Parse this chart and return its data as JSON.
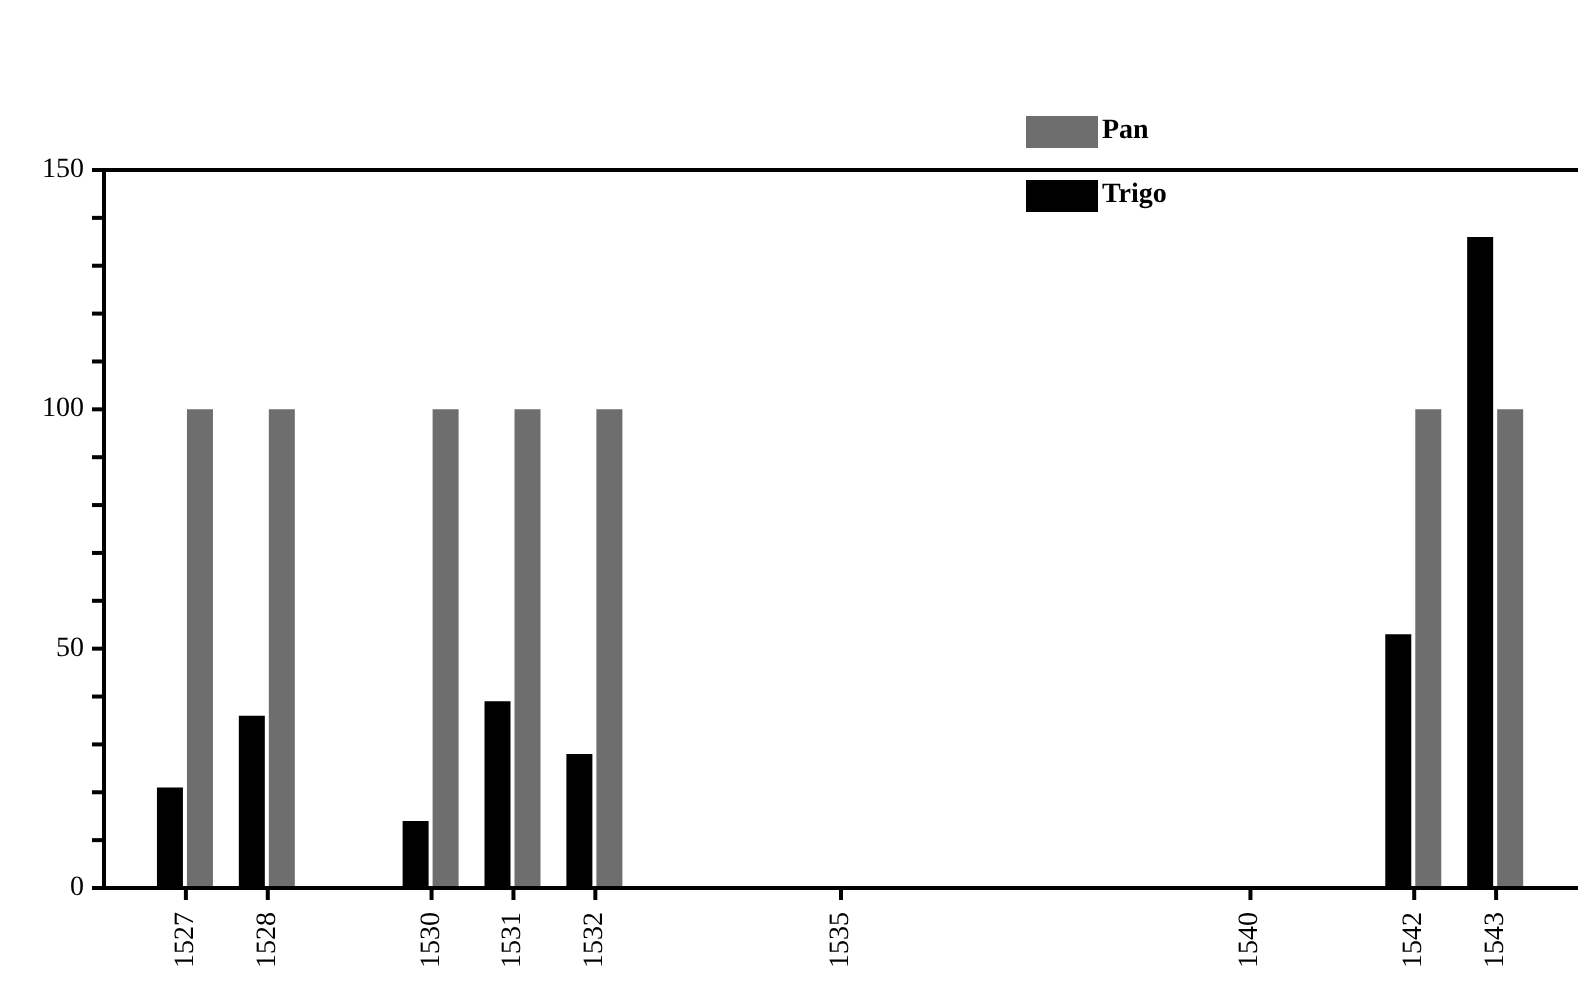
{
  "chart_data": {
    "type": "bar",
    "x": [
      1527,
      1528,
      1530,
      1531,
      1532,
      1542,
      1543
    ],
    "series": [
      {
        "name": "Trigo",
        "color": "#000000",
        "values": [
          21,
          36,
          14,
          39,
          28,
          53,
          136
        ]
      },
      {
        "name": "Pan",
        "color": "#6e6e6e",
        "values": [
          100,
          100,
          100,
          100,
          100,
          100,
          100
        ]
      }
    ],
    "xlim": [
      1526,
      1544
    ],
    "xticks": [
      1527,
      1528,
      1530,
      1531,
      1532,
      1535,
      1540,
      1542,
      1543
    ],
    "ylim": [
      0,
      150
    ],
    "yticks": [
      0,
      {
        "value": 10,
        "label": null
      },
      {
        "value": 20,
        "label": null
      },
      {
        "value": 30,
        "label": null
      },
      {
        "value": 40,
        "label": null
      },
      50,
      {
        "value": 60,
        "label": null
      },
      {
        "value": 70,
        "label": null
      },
      {
        "value": 80,
        "label": null
      },
      {
        "value": 90,
        "label": null
      },
      100,
      {
        "value": 110,
        "label": null
      },
      {
        "value": 120,
        "label": null
      },
      {
        "value": 130,
        "label": null
      },
      {
        "value": 140,
        "label": null
      },
      150
    ],
    "grid": false,
    "legend": "top right"
  }
}
